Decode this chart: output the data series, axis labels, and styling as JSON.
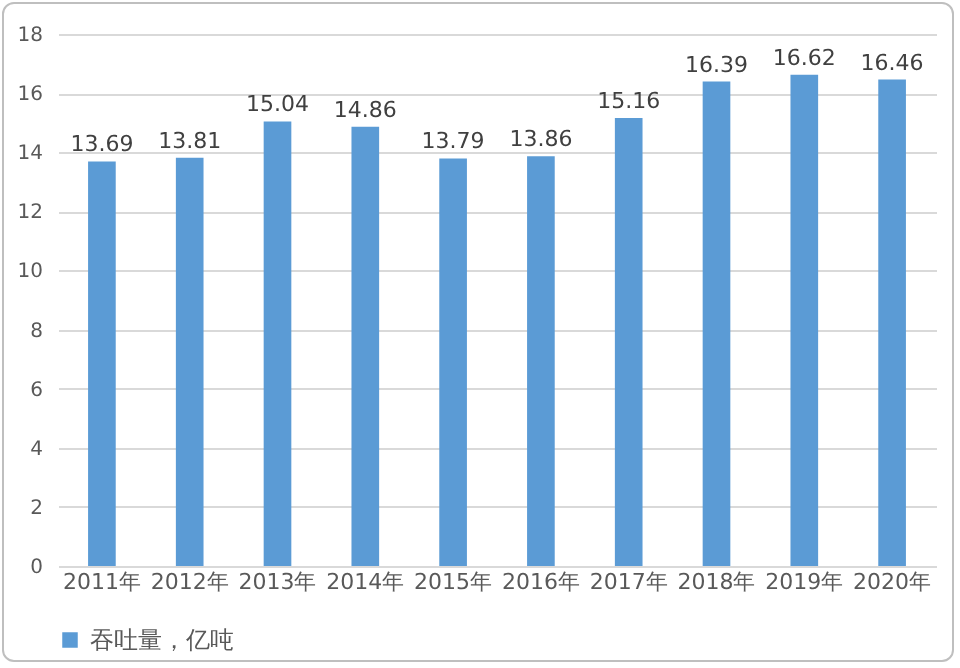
{
  "chart_data": {
    "type": "bar",
    "categories": [
      "2011年",
      "2012年",
      "2013年",
      "2014年",
      "2015年",
      "2016年",
      "2017年",
      "2018年",
      "2019年",
      "2020年"
    ],
    "series": [
      {
        "name": "吞吐量，亿吨",
        "color": "#5b9bd5",
        "values": [
          13.69,
          13.81,
          15.04,
          14.86,
          13.79,
          13.86,
          15.16,
          16.39,
          16.62,
          16.46
        ]
      }
    ],
    "ylim": [
      0,
      18
    ],
    "yticks": [
      0,
      2,
      4,
      6,
      8,
      10,
      12,
      14,
      16,
      18
    ],
    "grid": "y",
    "legend": "bottom",
    "data_labels": true
  }
}
